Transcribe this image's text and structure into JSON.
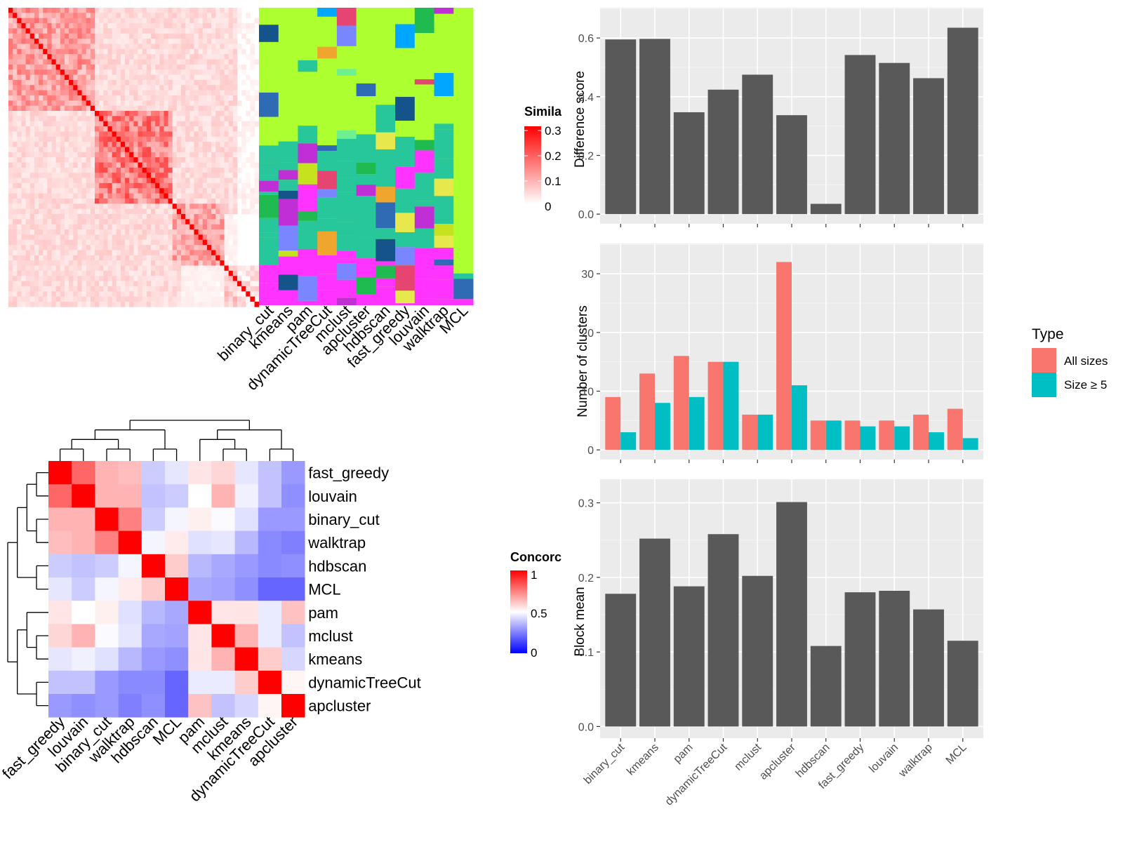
{
  "colors": {
    "panel_bg": "#ebebeb",
    "grid_major": "#ffffff",
    "bar_dark": "#595959",
    "all_sizes": "#f8766d",
    "size_ge5": "#00bfc4",
    "similarity_high": "#ff0000",
    "concordance_high": "#ff0000",
    "concordance_mid": "#ffffff",
    "concordance_low": "#0000ff"
  },
  "heatmap_similarity": {
    "legend_title": "Simila",
    "legend_ticks": [
      "0.3",
      "0.2",
      "0.1",
      "0"
    ],
    "method_labels": [
      "binary_cut",
      "kmeans",
      "pam",
      "dynamicTreeCut",
      "mclust",
      "apcluster",
      "hdbscan",
      "fast_greedy",
      "louvain",
      "walktrap",
      "MCL"
    ]
  },
  "heatmap_concordance": {
    "legend_title": "Concorc",
    "legend_ticks": [
      "1",
      "0.5",
      "0"
    ],
    "row_labels": [
      "fast_greedy",
      "louvain",
      "binary_cut",
      "walktrap",
      "hdbscan",
      "MCL",
      "pam",
      "mclust",
      "kmeans",
      "dynamicTreeCut",
      "apcluster"
    ],
    "col_labels": [
      "fast_greedy",
      "louvain",
      "binary_cut",
      "walktrap",
      "hdbscan",
      "MCL",
      "pam",
      "mclust",
      "kmeans",
      "dynamicTreeCut",
      "apcluster"
    ],
    "values": [
      [
        1.0,
        0.8,
        0.65,
        0.63,
        0.4,
        0.45,
        0.55,
        0.58,
        0.45,
        0.38,
        0.3
      ],
      [
        0.8,
        1.0,
        0.65,
        0.65,
        0.38,
        0.4,
        0.5,
        0.65,
        0.47,
        0.38,
        0.28
      ],
      [
        0.65,
        0.65,
        1.0,
        0.75,
        0.4,
        0.48,
        0.53,
        0.49,
        0.44,
        0.3,
        0.3
      ],
      [
        0.63,
        0.65,
        0.75,
        1.0,
        0.48,
        0.54,
        0.44,
        0.45,
        0.36,
        0.27,
        0.25
      ],
      [
        0.4,
        0.38,
        0.4,
        0.48,
        1.0,
        0.6,
        0.36,
        0.33,
        0.3,
        0.27,
        0.28
      ],
      [
        0.45,
        0.4,
        0.48,
        0.54,
        0.6,
        1.0,
        0.33,
        0.32,
        0.28,
        0.2,
        0.2
      ],
      [
        0.55,
        0.5,
        0.53,
        0.44,
        0.36,
        0.33,
        1.0,
        0.55,
        0.55,
        0.46,
        0.62
      ],
      [
        0.58,
        0.65,
        0.49,
        0.45,
        0.33,
        0.32,
        0.55,
        1.0,
        0.65,
        0.46,
        0.38
      ],
      [
        0.45,
        0.47,
        0.44,
        0.36,
        0.3,
        0.28,
        0.55,
        0.65,
        1.0,
        0.6,
        0.42
      ],
      [
        0.38,
        0.38,
        0.3,
        0.27,
        0.27,
        0.2,
        0.46,
        0.46,
        0.6,
        1.0,
        0.52
      ],
      [
        0.3,
        0.28,
        0.3,
        0.25,
        0.28,
        0.2,
        0.62,
        0.38,
        0.42,
        0.52,
        1.0
      ]
    ]
  },
  "chart_data": [
    {
      "type": "bar",
      "title": "",
      "xlabel": "",
      "ylabel": "Difference score",
      "categories": [
        "binary_cut",
        "kmeans",
        "pam",
        "dynamicTreeCut",
        "mclust",
        "apcluster",
        "hdbscan",
        "fast_greedy",
        "louvain",
        "walktrap",
        "MCL"
      ],
      "values": [
        0.595,
        0.597,
        0.347,
        0.424,
        0.475,
        0.337,
        0.035,
        0.542,
        0.515,
        0.463,
        0.635
      ],
      "ylim": [
        0,
        0.67
      ],
      "yticks": [
        "0.0",
        "0.2",
        "0.4",
        "0.6"
      ],
      "grid": true
    },
    {
      "type": "bar",
      "title": "",
      "xlabel": "",
      "ylabel": "Number of clusters",
      "categories": [
        "binary_cut",
        "kmeans",
        "pam",
        "dynamicTreeCut",
        "mclust",
        "apcluster",
        "hdbscan",
        "fast_greedy",
        "louvain",
        "walktrap",
        "MCL"
      ],
      "series": [
        {
          "name": "All sizes",
          "values": [
            9,
            13,
            16,
            15,
            6,
            32,
            5,
            5,
            5,
            6,
            7
          ]
        },
        {
          "name": "Size ≥ 5",
          "values": [
            3,
            8,
            9,
            15,
            6,
            11,
            5,
            4,
            4,
            3,
            2
          ]
        }
      ],
      "ylim": [
        0,
        33.5
      ],
      "yticks": [
        "0",
        "10",
        "20",
        "30"
      ],
      "legend": {
        "title": "Type",
        "position": "right"
      },
      "grid": true
    },
    {
      "type": "bar",
      "title": "",
      "xlabel": "",
      "ylabel": "Block mean",
      "categories": [
        "binary_cut",
        "kmeans",
        "pam",
        "dynamicTreeCut",
        "mclust",
        "apcluster",
        "hdbscan",
        "fast_greedy",
        "louvain",
        "walktrap",
        "MCL"
      ],
      "values": [
        0.178,
        0.252,
        0.188,
        0.258,
        0.202,
        0.301,
        0.108,
        0.18,
        0.182,
        0.157,
        0.115
      ],
      "ylim": [
        0,
        0.316
      ],
      "yticks": [
        "0.0",
        "0.1",
        "0.2",
        "0.3"
      ],
      "grid": true
    }
  ]
}
